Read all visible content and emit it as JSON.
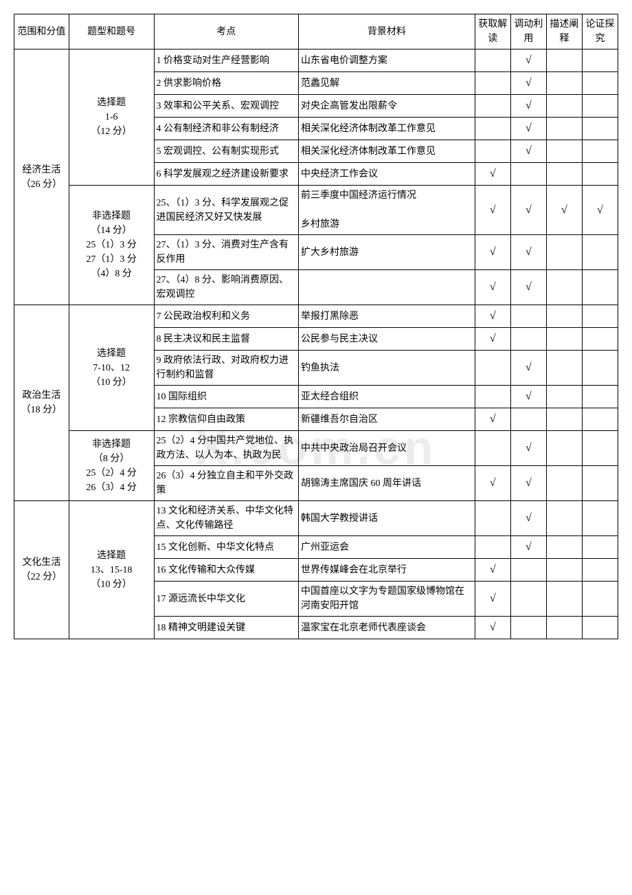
{
  "watermark": "X.com.cn",
  "headers": {
    "scope": "范围和分值",
    "qtype": "题型和题号",
    "point": "考点",
    "bg": "背景材料",
    "c1": "获取解读",
    "c2": "调动利用",
    "c3": "描述阐释",
    "c4": "论证探究"
  },
  "check": "√",
  "sections": [
    {
      "scope": "经济生活（26 分）",
      "groups": [
        {
          "qtype": "选择题\n1-6\n（12 分）",
          "rows": [
            {
              "point": "1 价格变动对生产经营影响",
              "bg": "山东省电价调整方案",
              "c": [
                0,
                1,
                0,
                0
              ]
            },
            {
              "point": "2 供求影响价格",
              "bg": "范蠡见解",
              "c": [
                0,
                1,
                0,
                0
              ]
            },
            {
              "point": "3 效率和公平关系、宏观调控",
              "bg": "对央企高管发出限薪令",
              "c": [
                0,
                1,
                0,
                0
              ]
            },
            {
              "point": "4 公有制经济和非公有制经济",
              "bg": "相关深化经济体制改革工作意见",
              "c": [
                0,
                1,
                0,
                0
              ]
            },
            {
              "point": "5 宏观调控、公有制实现形式",
              "bg": "相关深化经济体制改革工作意见",
              "c": [
                0,
                1,
                0,
                0
              ]
            },
            {
              "point": "6 科学发展观之经济建设新要求",
              "bg": "中央经济工作会议",
              "c": [
                1,
                0,
                0,
                0
              ]
            }
          ]
        },
        {
          "qtype": "非选择题\n（14 分）\n25（1）3 分\n27（1）3 分\n（4）8 分",
          "rows": [
            {
              "point": "25、（1）3 分、科学发展观之促进国民经济又好又快发展",
              "bg": "前三季度中国经济运行情况\n\n乡村旅游",
              "c": [
                1,
                1,
                1,
                1
              ]
            },
            {
              "point": "27、（1）3 分、消费对生产含有反作用",
              "bg": "扩大乡村旅游",
              "c": [
                1,
                1,
                0,
                0
              ]
            },
            {
              "point": "27、（4）8 分、影响消费原因、宏观调控",
              "bg": "",
              "c": [
                1,
                1,
                0,
                0
              ]
            }
          ]
        }
      ]
    },
    {
      "scope": "政治生活（18 分）",
      "groups": [
        {
          "qtype": "选择题\n7-10、12\n（10 分）",
          "rows": [
            {
              "point": "7 公民政治权利和义务",
              "bg": "举报打黑除恶",
              "c": [
                1,
                0,
                0,
                0
              ]
            },
            {
              "point": "8 民主决议和民主监督",
              "bg": "公民参与民主决议",
              "c": [
                1,
                0,
                0,
                0
              ]
            },
            {
              "point": "9 政府依法行政、对政府权力进行制约和监督",
              "bg": "钓鱼执法",
              "c": [
                0,
                1,
                0,
                0
              ]
            },
            {
              "point": "10 国际组织",
              "bg": "亚太经合组织",
              "c": [
                0,
                1,
                0,
                0
              ]
            },
            {
              "point": "12 宗教信仰自由政策",
              "bg": "新疆维吾尔自治区",
              "c": [
                1,
                0,
                0,
                0
              ]
            }
          ]
        },
        {
          "qtype": "非选择题\n（8 分）\n25（2）4 分\n26（3）4 分",
          "rows": [
            {
              "point": "25（2）4 分中国共产党地位、执政方法、以人为本、执政为民",
              "bg": "中共中央政治局召开会议",
              "c": [
                0,
                1,
                0,
                0
              ]
            },
            {
              "point": "26（3）4 分独立自主和平外交政策",
              "bg": "胡锦涛主席国庆 60 周年讲话",
              "c": [
                1,
                1,
                0,
                0
              ]
            }
          ]
        }
      ]
    },
    {
      "scope": "文化生活（22 分）",
      "groups": [
        {
          "qtype": "选择题\n13、15-18\n（10 分）",
          "rows": [
            {
              "point": "13 文化和经济关系、中华文化特点、文化传输路径",
              "bg": "韩国大学教授讲话",
              "c": [
                0,
                1,
                0,
                0
              ]
            },
            {
              "point": "15 文化创新、中华文化特点",
              "bg": "广州亚运会",
              "c": [
                0,
                1,
                0,
                0
              ]
            },
            {
              "point": "16 文化传输和大众传媒",
              "bg": "世界传媒峰会在北京举行",
              "c": [
                1,
                0,
                0,
                0
              ]
            },
            {
              "point": "17 源远流长中华文化",
              "bg": "中国首座以文字为专题国家级博物馆在河南安阳开馆",
              "c": [
                1,
                0,
                0,
                0
              ]
            },
            {
              "point": "18 精神文明建设关键",
              "bg": "温家宝在北京老师代表座谈会",
              "c": [
                1,
                0,
                0,
                0
              ]
            }
          ]
        }
      ]
    }
  ]
}
